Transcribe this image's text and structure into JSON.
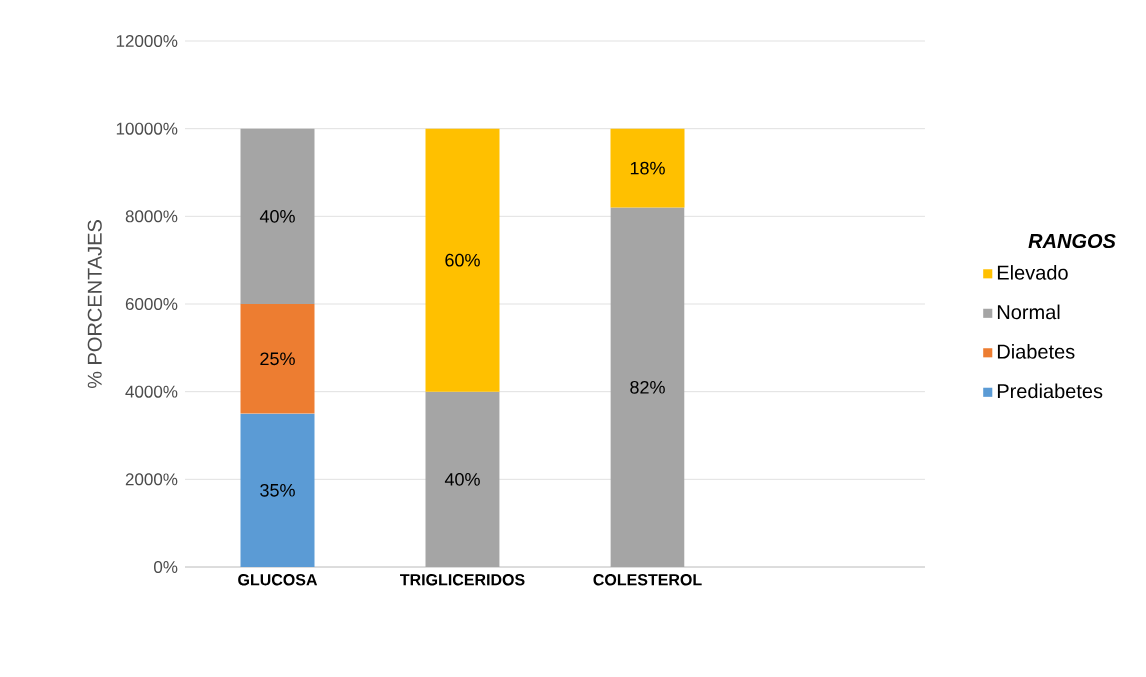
{
  "chart_data": {
    "type": "bar",
    "stacked": true,
    "ylabel": "% PORCENTAJES",
    "legend_title": "RANGOS",
    "legend": "right",
    "grid": "y",
    "categories": [
      "GLUCOSA",
      "TRIGLICERIDOS",
      "COLESTEROL",
      null
    ],
    "ylim": [
      0,
      120
    ],
    "yticks": [
      {
        "value": 0,
        "label": "0%"
      },
      {
        "value": 20,
        "label": "2000%"
      },
      {
        "value": 40,
        "label": "4000%"
      },
      {
        "value": 60,
        "label": "6000%"
      },
      {
        "value": 80,
        "label": "8000%"
      },
      {
        "value": 100,
        "label": "10000%"
      },
      {
        "value": 120,
        "label": "12000%"
      }
    ],
    "series": [
      {
        "name": "Prediabetes",
        "color": "#5b9bd5",
        "values": [
          35,
          null,
          null,
          null
        ],
        "value_labels": [
          "35%",
          null,
          null,
          null
        ]
      },
      {
        "name": "Diabetes",
        "color": "#ed7d31",
        "values": [
          25,
          null,
          null,
          null
        ],
        "value_labels": [
          "25%",
          null,
          null,
          null
        ]
      },
      {
        "name": "Normal",
        "color": "#a5a5a5",
        "values": [
          40,
          40,
          82,
          null
        ],
        "value_labels": [
          "40%",
          "40%",
          "82%",
          null
        ]
      },
      {
        "name": "Elevado",
        "color": "#ffc000",
        "values": [
          null,
          60,
          18,
          null
        ],
        "value_labels": [
          null,
          "60%",
          "18%",
          null
        ]
      }
    ]
  }
}
